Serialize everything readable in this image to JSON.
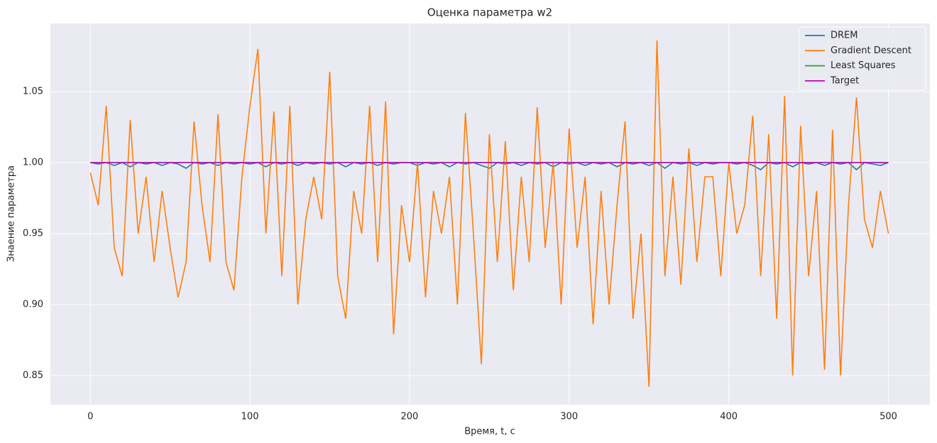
{
  "chart_data": {
    "type": "line",
    "title": "Оценка параметра w2",
    "xlabel": "Время, t, с",
    "ylabel": "Знаение параметра",
    "grid": true,
    "legend": "upper right",
    "xlim": [
      -25,
      526
    ],
    "ylim": [
      0.8295,
      1.098
    ],
    "xticks": [
      0,
      100,
      200,
      300,
      400,
      500
    ],
    "yticks": [
      0.85,
      {
        "value": 0.9,
        "label": "0.90"
      },
      0.95,
      {
        "value": 1,
        "label": "1.00"
      },
      1.05
    ],
    "x": [
      0,
      5,
      10,
      15,
      20,
      25,
      30,
      35,
      40,
      45,
      50,
      55,
      60,
      65,
      70,
      75,
      80,
      85,
      90,
      95,
      100,
      105,
      110,
      115,
      120,
      125,
      130,
      135,
      140,
      145,
      150,
      155,
      160,
      165,
      170,
      175,
      180,
      185,
      190,
      195,
      200,
      205,
      210,
      215,
      220,
      225,
      230,
      235,
      240,
      245,
      250,
      255,
      260,
      265,
      270,
      275,
      280,
      285,
      290,
      295,
      300,
      305,
      310,
      315,
      320,
      325,
      330,
      335,
      340,
      345,
      350,
      355,
      360,
      365,
      370,
      375,
      380,
      385,
      390,
      395,
      400,
      405,
      410,
      415,
      420,
      425,
      430,
      435,
      440,
      445,
      450,
      455,
      460,
      465,
      470,
      475,
      480,
      485,
      490,
      495,
      500
    ],
    "series": [
      {
        "name": "DREM",
        "color": "#1f77b4",
        "values": [
          1.0,
          0.999,
          1.0,
          0.998,
          1.0,
          0.997,
          1.0,
          0.999,
          1.0,
          0.998,
          1.0,
          0.999,
          0.996,
          1.0,
          0.999,
          1.0,
          0.998,
          1.0,
          0.999,
          1.0,
          0.999,
          1.0,
          0.997,
          1.0,
          0.999,
          1.0,
          0.998,
          1.0,
          0.999,
          1.0,
          0.999,
          1.0,
          0.997,
          1.0,
          0.999,
          1.0,
          0.998,
          1.0,
          0.999,
          1.0,
          1.0,
          0.998,
          1.0,
          0.999,
          1.0,
          0.997,
          1.0,
          0.999,
          1.0,
          0.998,
          0.996,
          1.0,
          0.999,
          1.0,
          0.998,
          1.0,
          0.999,
          1.0,
          0.997,
          1.0,
          0.999,
          1.0,
          0.998,
          1.0,
          0.999,
          1.0,
          0.997,
          1.0,
          0.999,
          1.0,
          0.998,
          1.0,
          0.996,
          1.0,
          0.999,
          1.0,
          0.998,
          1.0,
          0.999,
          1.0,
          1.0,
          0.999,
          1.0,
          0.998,
          0.995,
          1.0,
          0.999,
          1.0,
          0.997,
          1.0,
          0.999,
          1.0,
          0.998,
          1.0,
          0.999,
          1.0,
          0.995,
          1.0,
          0.999,
          0.998,
          1.0
        ]
      },
      {
        "name": "Gradient Descent",
        "color": "#ff7f0e",
        "values": [
          0.993,
          0.97,
          1.04,
          0.94,
          0.92,
          1.03,
          0.95,
          0.99,
          0.93,
          0.98,
          0.94,
          0.905,
          0.93,
          1.029,
          0.97,
          0.93,
          1.034,
          0.93,
          0.91,
          0.99,
          1.04,
          1.08,
          0.95,
          1.036,
          0.92,
          1.04,
          0.9,
          0.96,
          0.99,
          0.96,
          1.064,
          0.92,
          0.89,
          0.98,
          0.95,
          1.04,
          0.93,
          1.043,
          0.879,
          0.97,
          0.93,
          1.0,
          0.905,
          0.98,
          0.95,
          0.99,
          0.9,
          1.035,
          0.95,
          0.858,
          1.02,
          0.93,
          1.015,
          0.91,
          0.99,
          0.93,
          1.039,
          0.94,
          1.0,
          0.9,
          1.024,
          0.94,
          0.99,
          0.886,
          0.98,
          0.9,
          0.97,
          1.029,
          0.89,
          0.95,
          0.842,
          1.086,
          0.92,
          0.99,
          0.914,
          1.01,
          0.93,
          0.99,
          0.99,
          0.92,
          1.0,
          0.95,
          0.97,
          1.033,
          0.92,
          1.02,
          0.89,
          1.047,
          0.85,
          1.026,
          0.92,
          0.98,
          0.854,
          1.023,
          0.85,
          0.97,
          1.046,
          0.96,
          0.94,
          0.98,
          0.95
        ]
      },
      {
        "name": "Least Squares",
        "color": "#2ca02c",
        "values": [
          1,
          1,
          1,
          1,
          1,
          1,
          1,
          1,
          1,
          1,
          1,
          1,
          1,
          1,
          1,
          1,
          1,
          1,
          1,
          1,
          1,
          1,
          1,
          1,
          1,
          1,
          1,
          1,
          1,
          1,
          1,
          1,
          1,
          1,
          1,
          1,
          1,
          1,
          1,
          1,
          1,
          1,
          1,
          1,
          1,
          1,
          1,
          1,
          1,
          1,
          1,
          1,
          1,
          1,
          1,
          1,
          1,
          1,
          1,
          1,
          1,
          1,
          1,
          1,
          1,
          1,
          1,
          1,
          1,
          1,
          1,
          1,
          1,
          1,
          1,
          1,
          1,
          1,
          1,
          1,
          1,
          1,
          1,
          1,
          1,
          1,
          1,
          1,
          1,
          1,
          1,
          1,
          1,
          1,
          1,
          1,
          1,
          1,
          1,
          1,
          1
        ]
      },
      {
        "name": "Target",
        "color": "#c000c0",
        "values": [
          1,
          1,
          1,
          1,
          1,
          1,
          1,
          1,
          1,
          1,
          1,
          1,
          1,
          1,
          1,
          1,
          1,
          1,
          1,
          1,
          1,
          1,
          1,
          1,
          1,
          1,
          1,
          1,
          1,
          1,
          1,
          1,
          1,
          1,
          1,
          1,
          1,
          1,
          1,
          1,
          1,
          1,
          1,
          1,
          1,
          1,
          1,
          1,
          1,
          1,
          1,
          1,
          1,
          1,
          1,
          1,
          1,
          1,
          1,
          1,
          1,
          1,
          1,
          1,
          1,
          1,
          1,
          1,
          1,
          1,
          1,
          1,
          1,
          1,
          1,
          1,
          1,
          1,
          1,
          1,
          1,
          1,
          1,
          1,
          1,
          1,
          1,
          1,
          1,
          1,
          1,
          1,
          1,
          1,
          1,
          1,
          1,
          1,
          1,
          1,
          1
        ]
      }
    ]
  }
}
